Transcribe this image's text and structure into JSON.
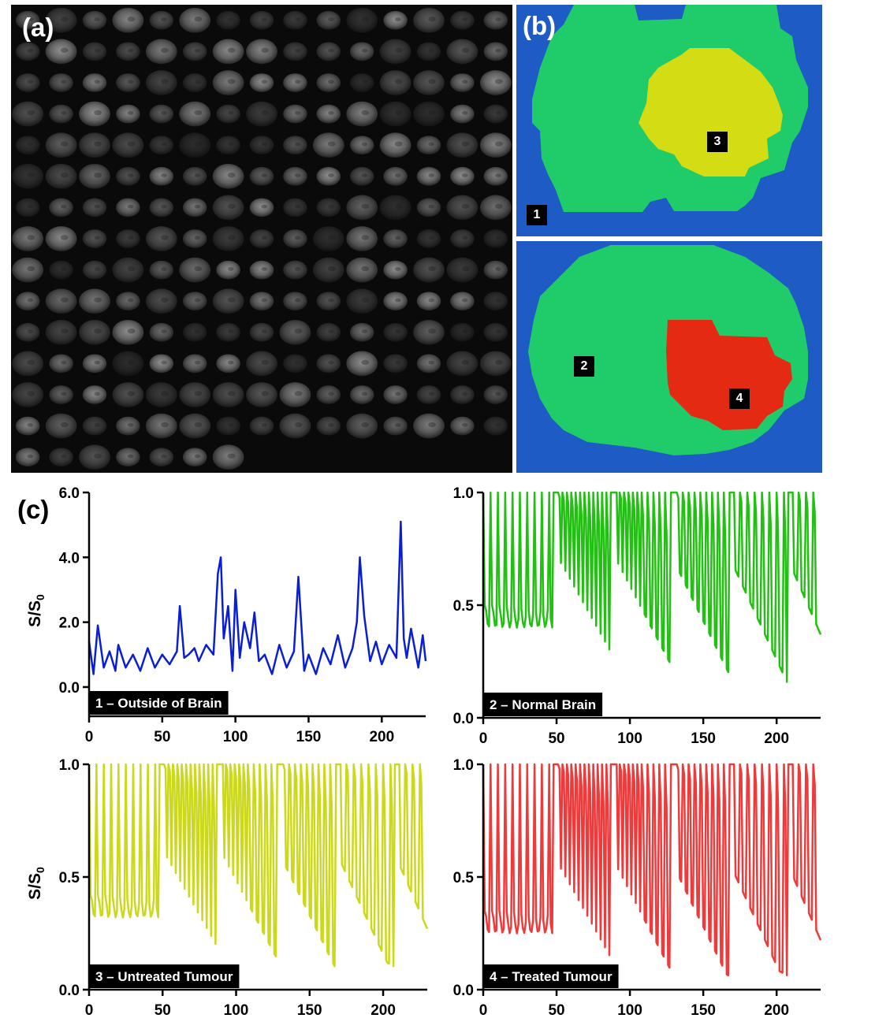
{
  "panels": {
    "a": {
      "letter": "(a)",
      "grid_rows": 15,
      "grid_cols": 15
    },
    "b": {
      "letter": "(b)",
      "badges": [
        "1",
        "2",
        "3",
        "4"
      ]
    },
    "c": {
      "letter": "(c)"
    }
  },
  "colors": {
    "outside": "#1f5bc4",
    "normal_brain": "#20cc6a",
    "untreated_tumour": "#d4dc14",
    "treated_tumour": "#e52a14",
    "line_outside": "#0a1ed6",
    "line_normal": "#22c012",
    "line_untreated": "#ccd81a",
    "line_treated": "#ee3a3a"
  },
  "chart_data": [
    {
      "type": "line",
      "label": "1 – Outside of Brain",
      "ylabel": "S/S0",
      "xlim": [
        0,
        230
      ],
      "ylim": [
        -0.9,
        6.0
      ],
      "xticks": [
        "0",
        "50",
        "100",
        "150",
        "200"
      ],
      "yticks": [
        "0.0",
        "2.0",
        "4.0",
        "6.0"
      ],
      "color": "#0a1ed6",
      "x": [
        0,
        3,
        6,
        10,
        14,
        18,
        20,
        25,
        30,
        35,
        40,
        45,
        50,
        55,
        60,
        62,
        65,
        68,
        72,
        75,
        80,
        85,
        88,
        90,
        92,
        95,
        98,
        100,
        103,
        106,
        110,
        113,
        116,
        120,
        125,
        130,
        135,
        140,
        143,
        147,
        150,
        155,
        160,
        165,
        170,
        175,
        180,
        183,
        185,
        188,
        192,
        196,
        200,
        205,
        210,
        213,
        215,
        217,
        220,
        225,
        228,
        230
      ],
      "values": [
        1.4,
        0.4,
        1.9,
        0.6,
        1.1,
        0.5,
        1.3,
        0.6,
        1.0,
        0.5,
        1.2,
        0.6,
        1.0,
        0.7,
        1.1,
        2.5,
        0.9,
        1.0,
        1.2,
        0.8,
        1.3,
        1.0,
        3.5,
        4.0,
        1.5,
        2.5,
        0.5,
        3.0,
        0.9,
        2.0,
        1.2,
        2.3,
        0.8,
        1.0,
        0.4,
        1.3,
        0.6,
        1.1,
        3.4,
        0.5,
        1.0,
        0.4,
        1.2,
        0.7,
        1.6,
        0.6,
        1.2,
        2.0,
        4.0,
        2.2,
        0.8,
        1.4,
        0.7,
        1.3,
        0.9,
        5.1,
        1.5,
        0.9,
        1.8,
        0.6,
        1.6,
        0.8
      ]
    },
    {
      "type": "line",
      "label": "2 – Normal Brain",
      "ylabel": "",
      "xlim": [
        0,
        230
      ],
      "ylim": [
        0.0,
        1.0
      ],
      "xticks": [
        "0",
        "50",
        "100",
        "150",
        "200"
      ],
      "yticks": [
        "0.0",
        "0.5",
        "1.0"
      ],
      "color": "#22c012",
      "pattern": {
        "start_level": 0.45,
        "mid_level": 0.7,
        "end_min": 0.08
      }
    },
    {
      "type": "line",
      "label": "3 – Untreated Tumour",
      "ylabel": "S/S0",
      "xlim": [
        0,
        230
      ],
      "ylim": [
        0.0,
        1.0
      ],
      "xticks": [
        "0",
        "50",
        "100",
        "150",
        "200"
      ],
      "yticks": [
        "0.0",
        "0.5",
        "1.0"
      ],
      "color": "#ccd81a",
      "pattern": {
        "start_level": 0.37,
        "mid_level": 0.6,
        "end_min": 0.1
      }
    },
    {
      "type": "line",
      "label": "4 – Treated Tumour",
      "ylabel": "",
      "xlim": [
        0,
        230
      ],
      "ylim": [
        0.0,
        1.0
      ],
      "xticks": [
        "0",
        "50",
        "100",
        "150",
        "200"
      ],
      "yticks": [
        "0.0",
        "0.5",
        "1.0"
      ],
      "color": "#ee3a3a",
      "pattern": {
        "start_level": 0.3,
        "mid_level": 0.55,
        "end_min": 0.06
      }
    }
  ]
}
